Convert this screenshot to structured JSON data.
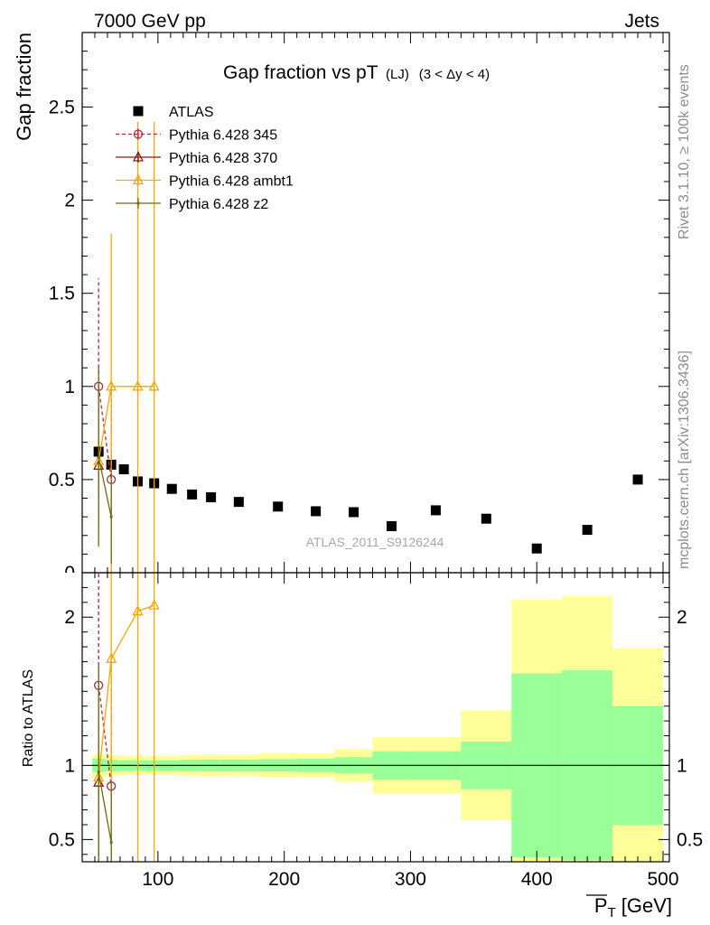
{
  "header": {
    "left": "7000 GeV pp",
    "right": "Jets"
  },
  "side_text": {
    "rivet": "Rivet 3.1.10, ≥ 100k events",
    "mcplots": "mcplots.cern.ch [arXiv:1306.3436]"
  },
  "chart_data": [
    {
      "type": "scatter",
      "title": "Gap fraction vs pT",
      "title_sub": "(LJ)",
      "title_cut": "(3 < Δy < 4)",
      "ylabel": "Gap fraction",
      "watermark": "ATLAS_2011_S9126244",
      "xlim": [
        40,
        505
      ],
      "ylim": [
        0,
        2.9
      ],
      "yticks": [
        0.5,
        1,
        1.5,
        2,
        2.5
      ],
      "ytick_labels": [
        "0.5",
        "1",
        "1.5",
        "2",
        "2.5"
      ],
      "ytick_zero_label": "0",
      "legend_position": "top-left",
      "colors": {
        "atlas": "#000000",
        "p345": "#a52a4a",
        "p370": "#8b1a1a",
        "ambt1": "#ffa500",
        "z2": "#6b6b10"
      },
      "series": [
        {
          "name": "ATLAS",
          "marker": "square",
          "points": [
            {
              "x": 53.0,
              "y": 0.65
            },
            {
              "x": 63.0,
              "y": 0.58
            },
            {
              "x": 73.0,
              "y": 0.555
            },
            {
              "x": 84.0,
              "y": 0.49
            },
            {
              "x": 97.0,
              "y": 0.48
            },
            {
              "x": 111.0,
              "y": 0.45
            },
            {
              "x": 127.0,
              "y": 0.42
            },
            {
              "x": 142.0,
              "y": 0.405
            },
            {
              "x": 164.0,
              "y": 0.38
            },
            {
              "x": 195.0,
              "y": 0.355
            },
            {
              "x": 225.0,
              "y": 0.33
            },
            {
              "x": 255.0,
              "y": 0.325
            },
            {
              "x": 285.0,
              "y": 0.25
            },
            {
              "x": 320.0,
              "y": 0.335
            },
            {
              "x": 360.0,
              "y": 0.29
            },
            {
              "x": 400.0,
              "y": 0.13
            },
            {
              "x": 440.0,
              "y": 0.23
            },
            {
              "x": 480.0,
              "y": 0.5
            }
          ]
        },
        {
          "name": "Pythia 6.428 345",
          "marker": "circle-open",
          "dashed": true,
          "points": [
            {
              "x": 53.0,
              "y": 1.0,
              "lo": 0.42,
              "hi": 1.58
            },
            {
              "x": 63.0,
              "y": 0.5,
              "lo": 0.0,
              "hi": 1.0
            }
          ]
        },
        {
          "name": "Pythia 6.428 370",
          "marker": "triangle-open",
          "points": [
            {
              "x": 53.0,
              "y": 0.575,
              "lo": 0.25,
              "hi": 0.9
            }
          ]
        },
        {
          "name": "Pythia 6.428 ambt1",
          "marker": "triangle-open",
          "points": [
            {
              "x": 53.0,
              "y": 0.6,
              "lo": 0.26,
              "hi": 0.94
            },
            {
              "x": 63.0,
              "y": 1.0,
              "lo": 0.0,
              "hi": 1.82
            },
            {
              "x": 84.0,
              "y": 1.0,
              "lo": 0.0,
              "hi": 2.42
            },
            {
              "x": 97.0,
              "y": 1.0,
              "lo": 0.0,
              "hi": 2.42
            }
          ]
        },
        {
          "name": "Pythia 6.428 z2",
          "marker": "dot",
          "points": [
            {
              "x": 53.0,
              "y": 0.62,
              "lo": 0.14,
              "hi": 1.1
            },
            {
              "x": 63.0,
              "y": 0.3,
              "lo": 0.05,
              "hi": 0.55
            }
          ]
        }
      ]
    },
    {
      "type": "line",
      "ylabel": "Ratio to ATLAS",
      "xlabel": "P_T [GeV]",
      "xlabel_main": "P",
      "xlabel_sub": "T",
      "xlabel_unit": "[GeV]",
      "xlim": [
        40,
        505
      ],
      "ylim": [
        0.35,
        2.3
      ],
      "xticks": [
        100,
        200,
        300,
        400,
        500
      ],
      "xtick_labels": [
        "100",
        "200",
        "300",
        "400",
        "500"
      ],
      "yticks": [
        0.5,
        1,
        2
      ],
      "ytick_labels": [
        "0.5",
        "1",
        "2"
      ],
      "reference_line": 1,
      "bands": [
        {
          "x0": 48,
          "x1": 58,
          "g_lo": 0.955,
          "g_hi": 1.045,
          "y_lo": 0.92,
          "y_hi": 1.075
        },
        {
          "x0": 58,
          "x1": 68,
          "g_lo": 0.96,
          "g_hi": 1.04,
          "y_lo": 0.93,
          "y_hi": 1.07
        },
        {
          "x0": 68,
          "x1": 78,
          "g_lo": 0.965,
          "g_hi": 1.035,
          "y_lo": 0.935,
          "y_hi": 1.065
        },
        {
          "x0": 78,
          "x1": 90,
          "g_lo": 0.965,
          "g_hi": 1.035,
          "y_lo": 0.935,
          "y_hi": 1.065
        },
        {
          "x0": 90,
          "x1": 104,
          "g_lo": 0.965,
          "g_hi": 1.035,
          "y_lo": 0.935,
          "y_hi": 1.065
        },
        {
          "x0": 104,
          "x1": 118,
          "g_lo": 0.965,
          "g_hi": 1.035,
          "y_lo": 0.935,
          "y_hi": 1.065
        },
        {
          "x0": 118,
          "x1": 135,
          "g_lo": 0.962,
          "g_hi": 1.038,
          "y_lo": 0.93,
          "y_hi": 1.07
        },
        {
          "x0": 135,
          "x1": 150,
          "g_lo": 0.96,
          "g_hi": 1.04,
          "y_lo": 0.925,
          "y_hi": 1.075
        },
        {
          "x0": 150,
          "x1": 180,
          "g_lo": 0.96,
          "g_hi": 1.04,
          "y_lo": 0.93,
          "y_hi": 1.07
        },
        {
          "x0": 180,
          "x1": 210,
          "g_lo": 0.958,
          "g_hi": 1.042,
          "y_lo": 0.92,
          "y_hi": 1.08
        },
        {
          "x0": 210,
          "x1": 240,
          "g_lo": 0.955,
          "g_hi": 1.045,
          "y_lo": 0.92,
          "y_hi": 1.08
        },
        {
          "x0": 240,
          "x1": 270,
          "g_lo": 0.945,
          "g_hi": 1.055,
          "y_lo": 0.89,
          "y_hi": 1.11
        },
        {
          "x0": 270,
          "x1": 300,
          "g_lo": 0.905,
          "g_hi": 1.095,
          "y_lo": 0.81,
          "y_hi": 1.19
        },
        {
          "x0": 300,
          "x1": 340,
          "g_lo": 0.905,
          "g_hi": 1.095,
          "y_lo": 0.81,
          "y_hi": 1.19
        },
        {
          "x0": 340,
          "x1": 380,
          "g_lo": 0.84,
          "g_hi": 1.16,
          "y_lo": 0.63,
          "y_hi": 1.37
        },
        {
          "x0": 380,
          "x1": 420,
          "g_lo": 0.38,
          "g_hi": 1.62,
          "y_lo": 0.0,
          "y_hi": 2.12
        },
        {
          "x0": 420,
          "x1": 460,
          "g_lo": 0.36,
          "g_hi": 1.64,
          "y_lo": 0.0,
          "y_hi": 2.14
        },
        {
          "x0": 460,
          "x1": 500,
          "g_lo": 0.6,
          "g_hi": 1.4,
          "y_lo": 0.0,
          "y_hi": 1.79
        }
      ],
      "band_colors": {
        "green": "#99ff99",
        "yellow": "#ffff99"
      },
      "series": [
        {
          "name": "Pythia 6.428 345",
          "points": [
            {
              "x": 53.0,
              "y": 1.54,
              "lo": 0.0,
              "hi": 2.3
            },
            {
              "x": 63.0,
              "y": 0.86,
              "lo": 0.0,
              "hi": 1.72
            }
          ]
        },
        {
          "name": "Pythia 6.428 370",
          "points": [
            {
              "x": 53.0,
              "y": 0.885,
              "lo": 0.39,
              "hi": 1.38
            }
          ]
        },
        {
          "name": "Pythia 6.428 ambt1",
          "points": [
            {
              "x": 53.0,
              "y": 0.92,
              "lo": 0.4,
              "hi": 1.45
            },
            {
              "x": 63.0,
              "y": 1.72,
              "lo": 0.0,
              "hi": 2.3
            },
            {
              "x": 84.0,
              "y": 2.04,
              "lo": 0.0,
              "hi": 2.3
            },
            {
              "x": 97.0,
              "y": 2.08,
              "lo": 0.0,
              "hi": 2.3
            }
          ]
        },
        {
          "name": "Pythia 6.428 z2",
          "points": [
            {
              "x": 53.0,
              "y": 0.955,
              "lo": 0.21,
              "hi": 1.69
            },
            {
              "x": 63.0,
              "y": 0.48,
              "lo": 0.08,
              "hi": 0.9
            }
          ]
        }
      ]
    }
  ]
}
